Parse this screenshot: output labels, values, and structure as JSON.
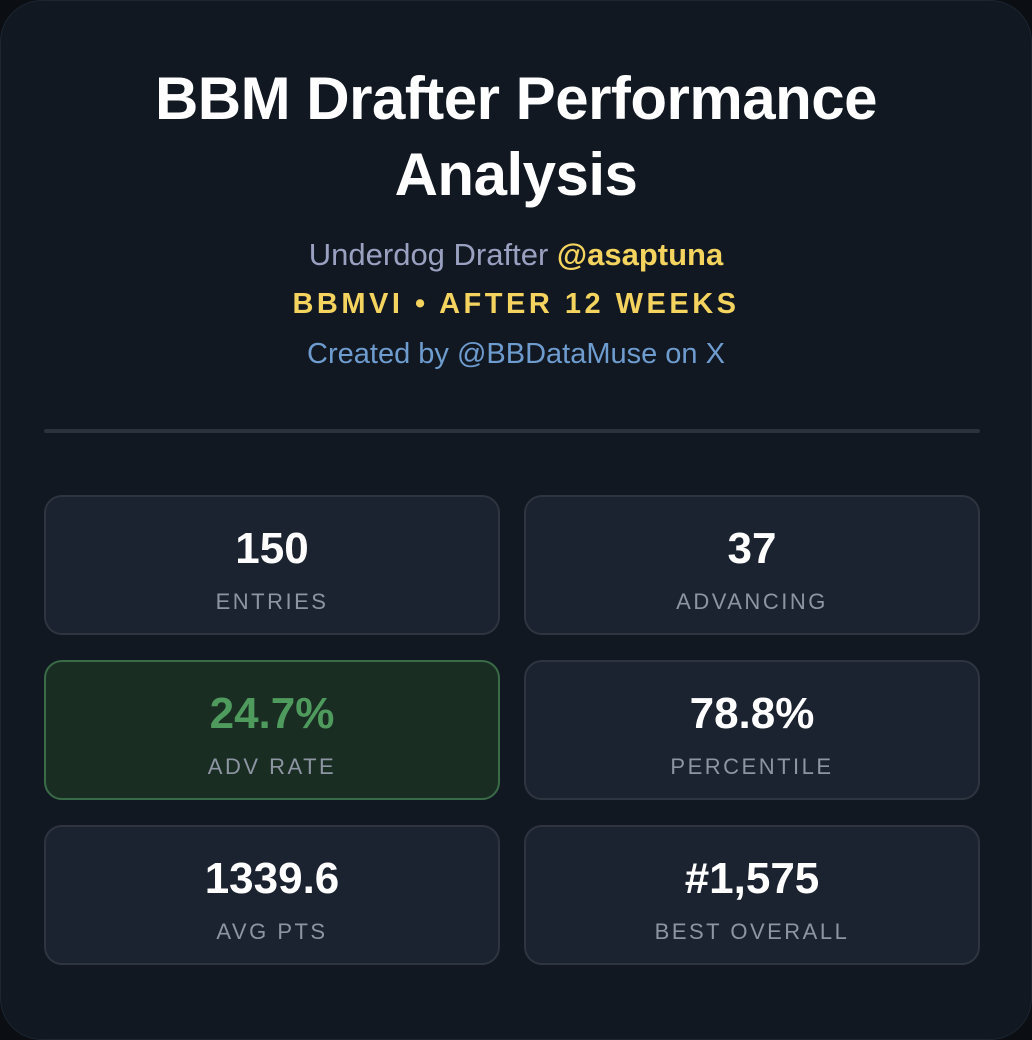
{
  "header": {
    "title": "BBM Drafter Performance Analysis",
    "subtitle_prefix": "Underdog Drafter ",
    "handle": "@asaptuna",
    "season": "BBMVI • AFTER 12 WEEKS",
    "credit": "Created by @BBDataMuse on X"
  },
  "stats": [
    {
      "value": "150",
      "label": "ENTRIES"
    },
    {
      "value": "37",
      "label": "ADVANCING"
    },
    {
      "value": "24.7%",
      "label": "ADV RATE"
    },
    {
      "value": "78.8%",
      "label": "PERCENTILE"
    },
    {
      "value": "1339.6",
      "label": "AVG PTS"
    },
    {
      "value": "#1,575",
      "label": "BEST OVERALL"
    }
  ],
  "colors": {
    "accent_yellow": "#f4d35e",
    "accent_green": "#4f9b5d",
    "credit_blue": "#6e9ccf",
    "card_bg": "#111822"
  }
}
